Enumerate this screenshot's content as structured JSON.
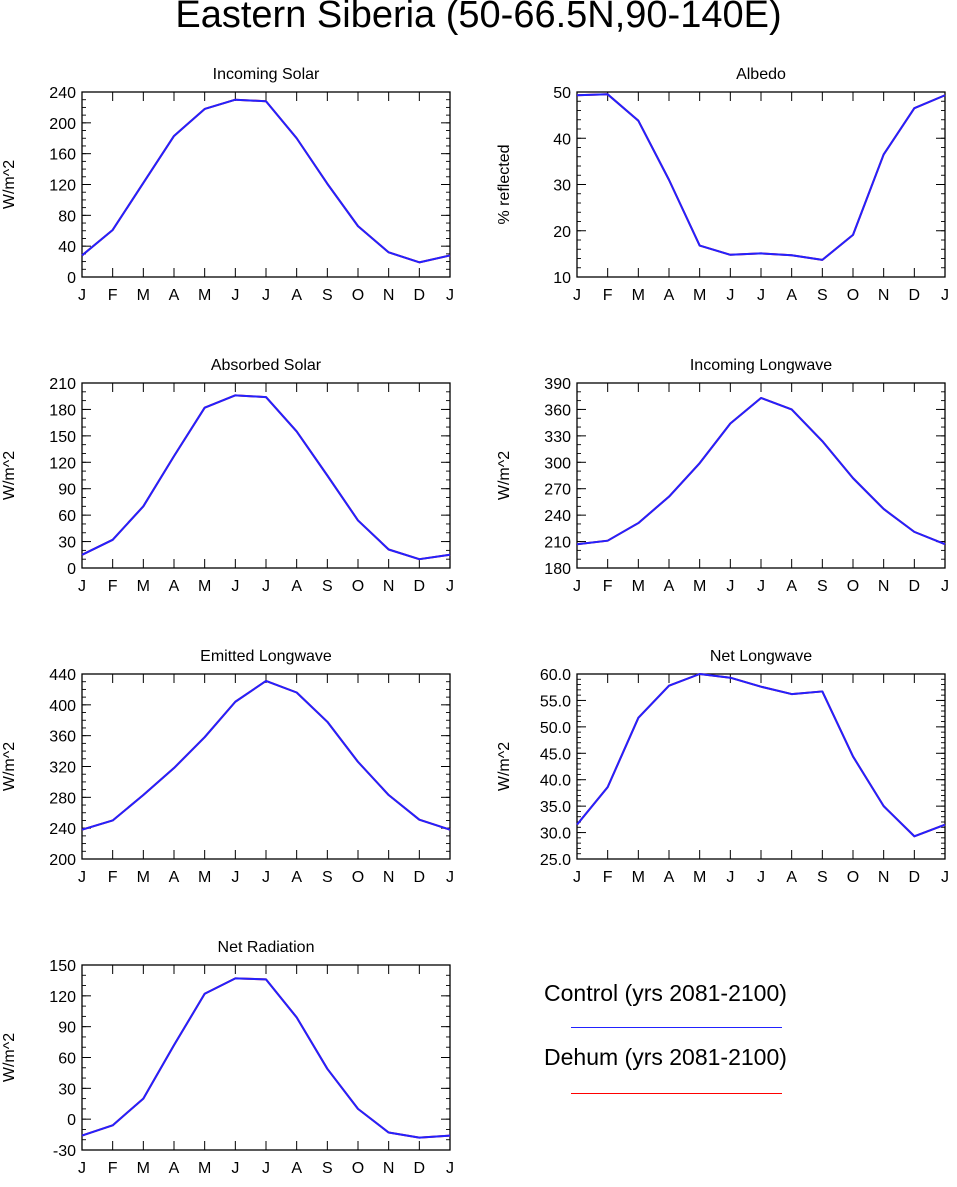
{
  "title": "Eastern Siberia (50-66.5N,90-140E)",
  "months": [
    "J",
    "F",
    "M",
    "A",
    "M",
    "J",
    "J",
    "A",
    "S",
    "O",
    "N",
    "D",
    "J"
  ],
  "colors": {
    "control": "#2222ff",
    "dehum": "#ff0000"
  },
  "legend": [
    {
      "label": "Control (yrs 2081-2100)",
      "color": "#2222ff"
    },
    {
      "label": "Dehum (yrs 2081-2100)",
      "color": "#ff0000"
    }
  ],
  "chart_data": [
    {
      "type": "line",
      "title": "Incoming Solar",
      "ylabel": "W/m^2",
      "categories": [
        "J",
        "F",
        "M",
        "A",
        "M",
        "J",
        "J",
        "A",
        "S",
        "O",
        "N",
        "D",
        "J"
      ],
      "ylim": [
        0,
        240
      ],
      "yticks": [
        "0",
        "40",
        "80",
        "120",
        "160",
        "200",
        "240"
      ],
      "yminor": 10,
      "series": [
        {
          "name": "Control (yrs 2081-2100)",
          "values": [
            28,
            61,
            122,
            183,
            218,
            230,
            228,
            180,
            121,
            66,
            32,
            19,
            28
          ]
        },
        {
          "name": "Dehum (yrs 2081-2100)",
          "values": [
            28,
            61,
            122,
            183,
            218,
            230,
            228,
            180,
            121,
            66,
            32,
            19,
            28
          ]
        }
      ]
    },
    {
      "type": "line",
      "title": "Albedo",
      "ylabel": "% reflected",
      "categories": [
        "J",
        "F",
        "M",
        "A",
        "M",
        "J",
        "J",
        "A",
        "S",
        "O",
        "N",
        "D",
        "J"
      ],
      "ylim": [
        10,
        50
      ],
      "yticks": [
        "10",
        "20",
        "30",
        "40",
        "50"
      ],
      "yminor": 2,
      "series": [
        {
          "name": "Control (yrs 2081-2100)",
          "values": [
            49.3,
            49.5,
            43.8,
            31.0,
            16.8,
            14.8,
            15.1,
            14.7,
            13.7,
            19.1,
            36.5,
            46.5,
            49.3
          ]
        },
        {
          "name": "Dehum (yrs 2081-2100)",
          "values": [
            49.3,
            49.5,
            43.8,
            31.0,
            16.8,
            14.8,
            15.1,
            14.7,
            13.7,
            19.1,
            36.5,
            46.5,
            49.3
          ]
        }
      ]
    },
    {
      "type": "line",
      "title": "Absorbed Solar",
      "ylabel": "W/m^2",
      "categories": [
        "J",
        "F",
        "M",
        "A",
        "M",
        "J",
        "J",
        "A",
        "S",
        "O",
        "N",
        "D",
        "J"
      ],
      "ylim": [
        0,
        210
      ],
      "yticks": [
        "0",
        "30",
        "60",
        "90",
        "120",
        "150",
        "180",
        "210"
      ],
      "yminor": 10,
      "series": [
        {
          "name": "Control (yrs 2081-2100)",
          "values": [
            15,
            32,
            70,
            127,
            182,
            196,
            194,
            155,
            105,
            54,
            21,
            10,
            15
          ]
        },
        {
          "name": "Dehum (yrs 2081-2100)",
          "values": [
            15,
            32,
            70,
            127,
            182,
            196,
            194,
            155,
            105,
            54,
            21,
            10,
            15
          ]
        }
      ]
    },
    {
      "type": "line",
      "title": "Incoming Longwave",
      "ylabel": "W/m^2",
      "categories": [
        "J",
        "F",
        "M",
        "A",
        "M",
        "J",
        "J",
        "A",
        "S",
        "O",
        "N",
        "D",
        "J"
      ],
      "ylim": [
        180,
        390
      ],
      "yticks": [
        "180",
        "210",
        "240",
        "270",
        "300",
        "330",
        "360",
        "390"
      ],
      "yminor": 10,
      "series": [
        {
          "name": "Control (yrs 2081-2100)",
          "values": [
            207,
            211,
            231,
            261,
            299,
            344,
            373,
            360,
            324,
            282,
            247,
            221,
            207
          ]
        },
        {
          "name": "Dehum (yrs 2081-2100)",
          "values": [
            207,
            211,
            231,
            261,
            299,
            344,
            373,
            360,
            324,
            282,
            247,
            221,
            207
          ]
        }
      ]
    },
    {
      "type": "line",
      "title": "Emitted Longwave",
      "ylabel": "W/m^2",
      "categories": [
        "J",
        "F",
        "M",
        "A",
        "M",
        "J",
        "J",
        "A",
        "S",
        "O",
        "N",
        "D",
        "J"
      ],
      "ylim": [
        200,
        440
      ],
      "yticks": [
        "200",
        "240",
        "280",
        "320",
        "360",
        "400",
        "440"
      ],
      "yminor": 10,
      "series": [
        {
          "name": "Control (yrs 2081-2100)",
          "values": [
            238,
            250,
            283,
            318,
            358,
            404,
            431,
            416,
            378,
            326,
            283,
            251,
            238
          ]
        },
        {
          "name": "Dehum (yrs 2081-2100)",
          "values": [
            238,
            250,
            283,
            318,
            358,
            404,
            431,
            416,
            378,
            326,
            283,
            251,
            238
          ]
        }
      ]
    },
    {
      "type": "line",
      "title": "Net Longwave",
      "ylabel": "W/m^2",
      "categories": [
        "J",
        "F",
        "M",
        "A",
        "M",
        "J",
        "J",
        "A",
        "S",
        "O",
        "N",
        "D",
        "J"
      ],
      "ylim": [
        25,
        60
      ],
      "yticks": [
        "25.0",
        "30.0",
        "35.0",
        "40.0",
        "45.0",
        "50.0",
        "55.0",
        "60.0"
      ],
      "yminor": 1,
      "series": [
        {
          "name": "Control (yrs 2081-2100)",
          "values": [
            31.5,
            38.6,
            51.7,
            57.8,
            60.0,
            59.3,
            57.6,
            56.2,
            56.7,
            44.4,
            35.0,
            29.3,
            31.5
          ]
        },
        {
          "name": "Dehum (yrs 2081-2100)",
          "values": [
            31.5,
            38.6,
            51.7,
            57.8,
            60.0,
            59.3,
            57.6,
            56.2,
            56.7,
            44.4,
            35.0,
            29.3,
            31.5
          ]
        }
      ]
    },
    {
      "type": "line",
      "title": "Net Radiation",
      "ylabel": "W/m^2",
      "categories": [
        "J",
        "F",
        "M",
        "A",
        "M",
        "J",
        "J",
        "A",
        "S",
        "O",
        "N",
        "D",
        "J"
      ],
      "ylim": [
        -30,
        150
      ],
      "yticks": [
        "-30",
        "0",
        "30",
        "60",
        "90",
        "120",
        "150"
      ],
      "yminor": 10,
      "series": [
        {
          "name": "Control (yrs 2081-2100)",
          "values": [
            -16,
            -6,
            20,
            72,
            122,
            137,
            136,
            99,
            49,
            10,
            -13,
            -18,
            -16
          ]
        },
        {
          "name": "Dehum (yrs 2081-2100)",
          "values": [
            -16,
            -6,
            20,
            72,
            122,
            137,
            136,
            99,
            49,
            10,
            -13,
            -18,
            -16
          ]
        }
      ]
    }
  ]
}
